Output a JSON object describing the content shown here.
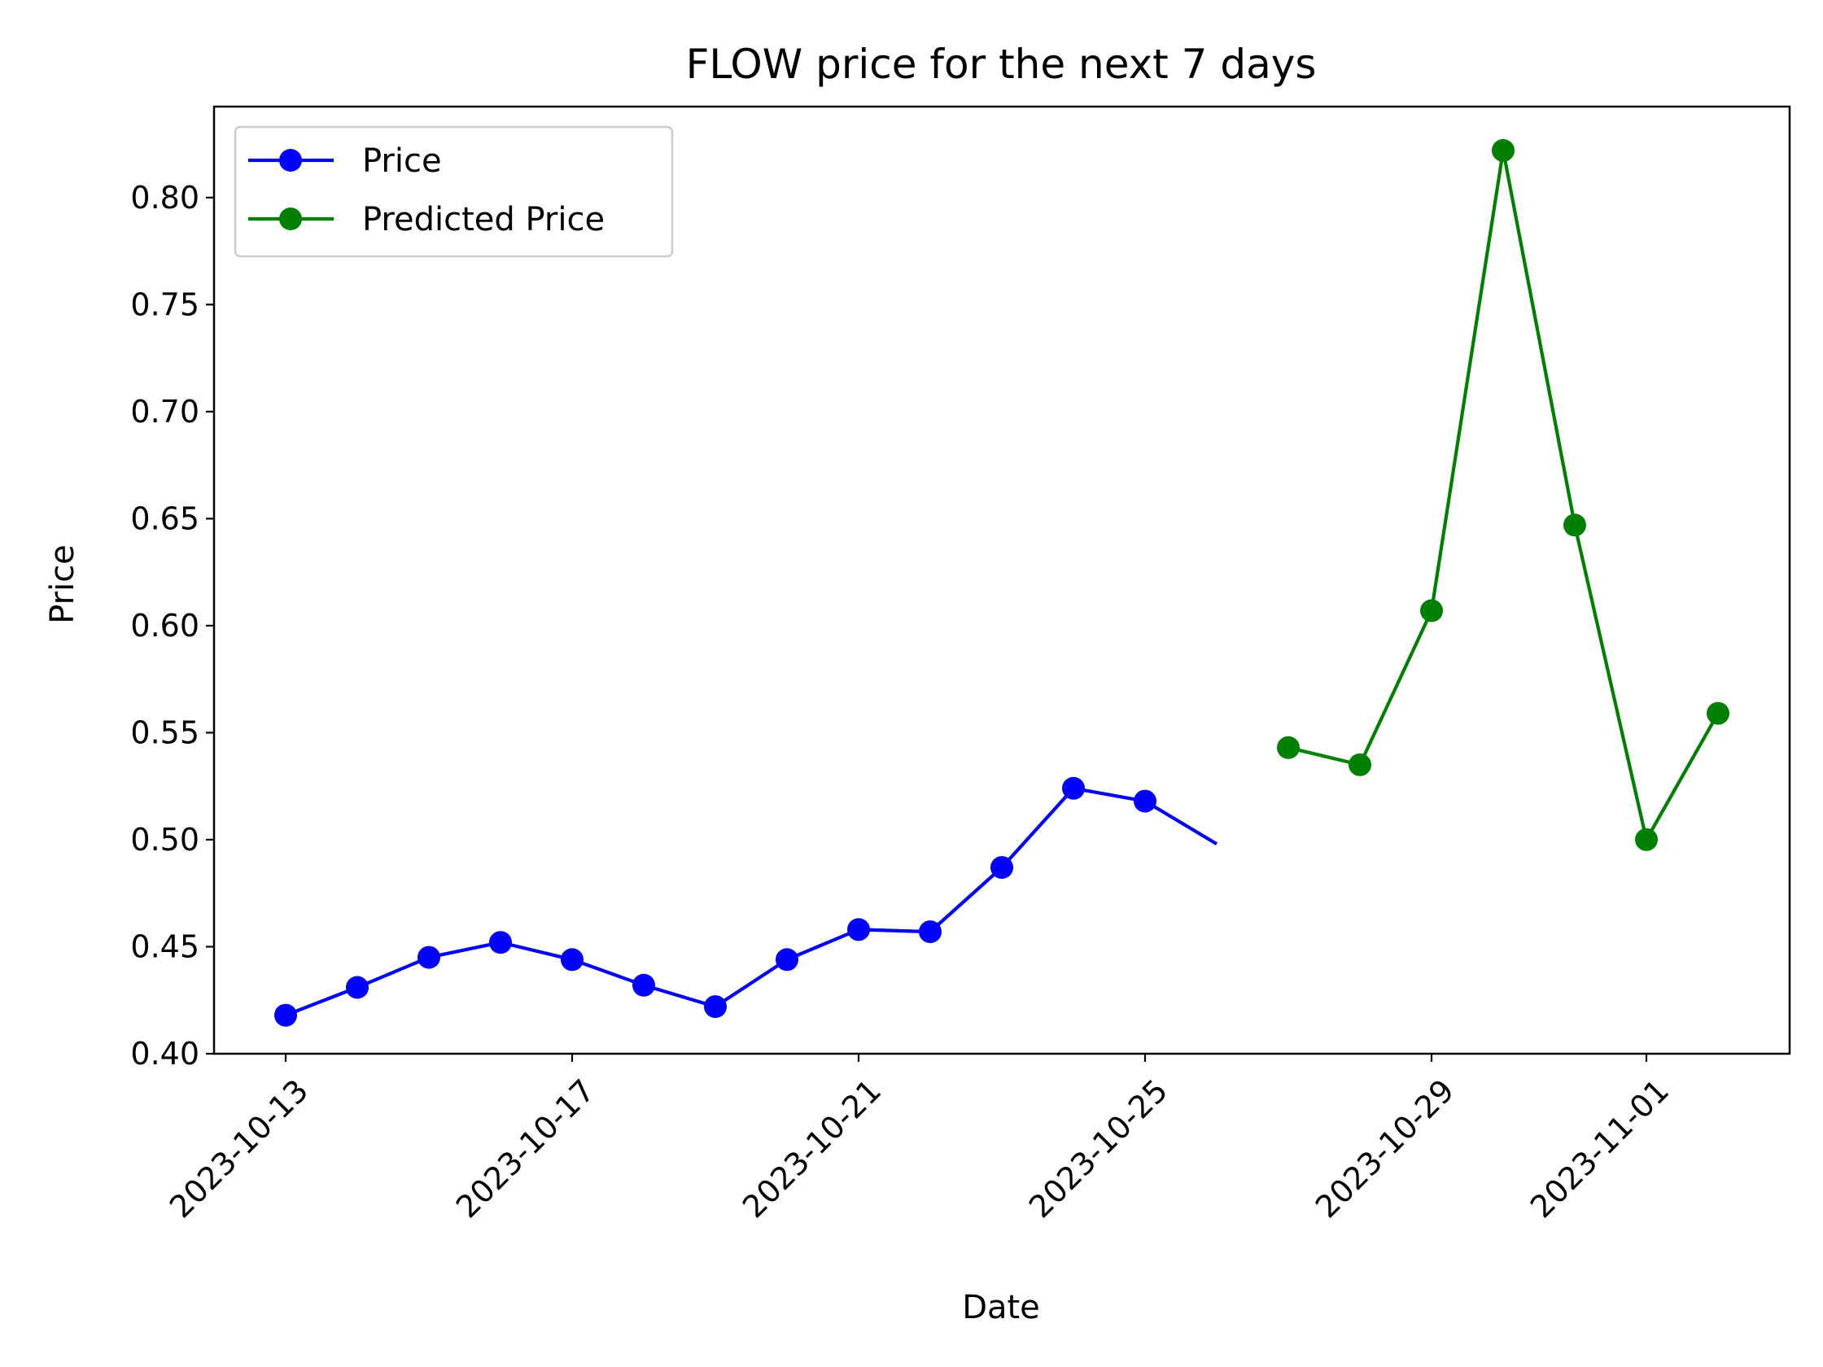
{
  "chart_data": {
    "type": "line",
    "title": "FLOW price for the next 7 days",
    "xlabel": "Date",
    "ylabel": "Price",
    "xlim": [
      "2023-10-12",
      "2023-11-03"
    ],
    "ylim": [
      0.4,
      0.8425
    ],
    "x_ticks": [
      "2023-10-13",
      "2023-10-17",
      "2023-10-21",
      "2023-10-25",
      "2023-10-29",
      "2023-11-01"
    ],
    "y_ticks": [
      "0.40",
      "0.45",
      "0.50",
      "0.55",
      "0.60",
      "0.65",
      "0.70",
      "0.75",
      "0.80"
    ],
    "grid": false,
    "legend_position": "top-left",
    "series": [
      {
        "name": "Price",
        "color": "#0000ff",
        "markers": true,
        "points": [
          {
            "x": "2023-10-13",
            "y": 0.418
          },
          {
            "x": "2023-10-14",
            "y": 0.431
          },
          {
            "x": "2023-10-15",
            "y": 0.445
          },
          {
            "x": "2023-10-16",
            "y": 0.452
          },
          {
            "x": "2023-10-17",
            "y": 0.444
          },
          {
            "x": "2023-10-18",
            "y": 0.432
          },
          {
            "x": "2023-10-19",
            "y": 0.422
          },
          {
            "x": "2023-10-20",
            "y": 0.444
          },
          {
            "x": "2023-10-21",
            "y": 0.458
          },
          {
            "x": "2023-10-22",
            "y": 0.457
          },
          {
            "x": "2023-10-23",
            "y": 0.487
          },
          {
            "x": "2023-10-24",
            "y": 0.524
          },
          {
            "x": "2023-10-25",
            "y": 0.518
          }
        ],
        "line_end": {
          "x": "2023-10-26",
          "y": 0.498
        }
      },
      {
        "name": "Predicted Price",
        "color": "#008000",
        "markers": true,
        "points": [
          {
            "x": "2023-10-27",
            "y": 0.543
          },
          {
            "x": "2023-10-28",
            "y": 0.535
          },
          {
            "x": "2023-10-29",
            "y": 0.607
          },
          {
            "x": "2023-10-30",
            "y": 0.822
          },
          {
            "x": "2023-10-31",
            "y": 0.647
          },
          {
            "x": "2023-11-01",
            "y": 0.5
          },
          {
            "x": "2023-11-02",
            "y": 0.559
          }
        ]
      }
    ]
  }
}
